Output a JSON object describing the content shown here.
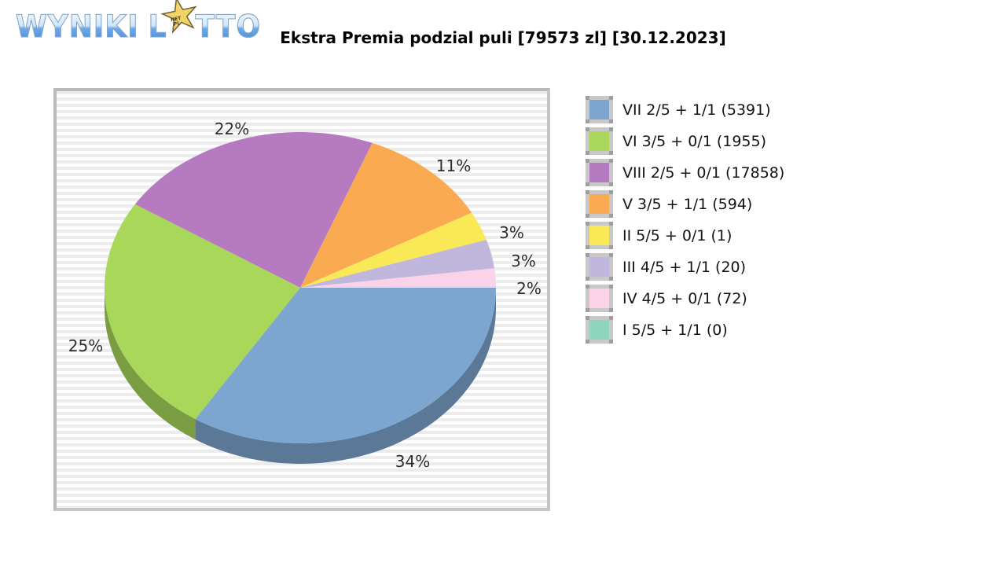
{
  "logo": {
    "part1": "WYNIKI",
    "part2": "L",
    "part3": "TTO",
    "star_icon": "star-icon",
    "star_caption_line1": "NET",
    "star_caption_line2": "PL"
  },
  "title": "Ekstra Premia podzial puli [79573 zl] [30.12.2023]",
  "chart_data": {
    "type": "pie",
    "style": "3d",
    "title": "Ekstra Premia podzial puli",
    "pool_total": "79573 zl",
    "date": "30.12.2023",
    "legend_position": "right",
    "grid": false,
    "slices": [
      {
        "id": "IV",
        "label": "IV 4/5 + 0/1 (72)",
        "winners": 72,
        "percent": 2,
        "color": "#fbd3e8"
      },
      {
        "id": "III",
        "label": "III 4/5 + 1/1 (20)",
        "winners": 20,
        "percent": 3,
        "color": "#c1b7dd"
      },
      {
        "id": "II",
        "label": "II 5/5 + 0/1 (1)",
        "winners": 1,
        "percent": 3,
        "color": "#fae956"
      },
      {
        "id": "V",
        "label": "V 3/5 + 1/1 (594)",
        "winners": 594,
        "percent": 11,
        "color": "#faab52"
      },
      {
        "id": "VIII",
        "label": "VIII 2/5 + 0/1 (17858)",
        "winners": 17858,
        "percent": 22,
        "color": "#b57abf"
      },
      {
        "id": "VI",
        "label": "VI 3/5 + 0/1 (1955)",
        "winners": 1955,
        "percent": 25,
        "color": "#a8d75a"
      },
      {
        "id": "VII",
        "label": "VII 2/5 + 1/1 (5391)",
        "winners": 5391,
        "percent": 34,
        "color": "#7ca6cf"
      }
    ],
    "legend": [
      {
        "id": "VII",
        "label": "VII 2/5 + 1/1 (5391)",
        "color": "#7ca6cf"
      },
      {
        "id": "VI",
        "label": "VI 3/5 + 0/1 (1955)",
        "color": "#a8d75a"
      },
      {
        "id": "VIII",
        "label": "VIII 2/5 + 0/1 (17858)",
        "color": "#b57abf"
      },
      {
        "id": "V",
        "label": "V 3/5 + 1/1 (594)",
        "color": "#faab52"
      },
      {
        "id": "II",
        "label": "II 5/5 + 0/1 (1)",
        "color": "#fae956"
      },
      {
        "id": "III",
        "label": "III 4/5 + 1/1 (20)",
        "color": "#c1b7dd"
      },
      {
        "id": "IV",
        "label": "IV 4/5 + 0/1 (72)",
        "color": "#fbd3e8"
      },
      {
        "id": "I",
        "label": "I 5/5 + 1/1 (0)",
        "color": "#8fd5be"
      }
    ]
  }
}
